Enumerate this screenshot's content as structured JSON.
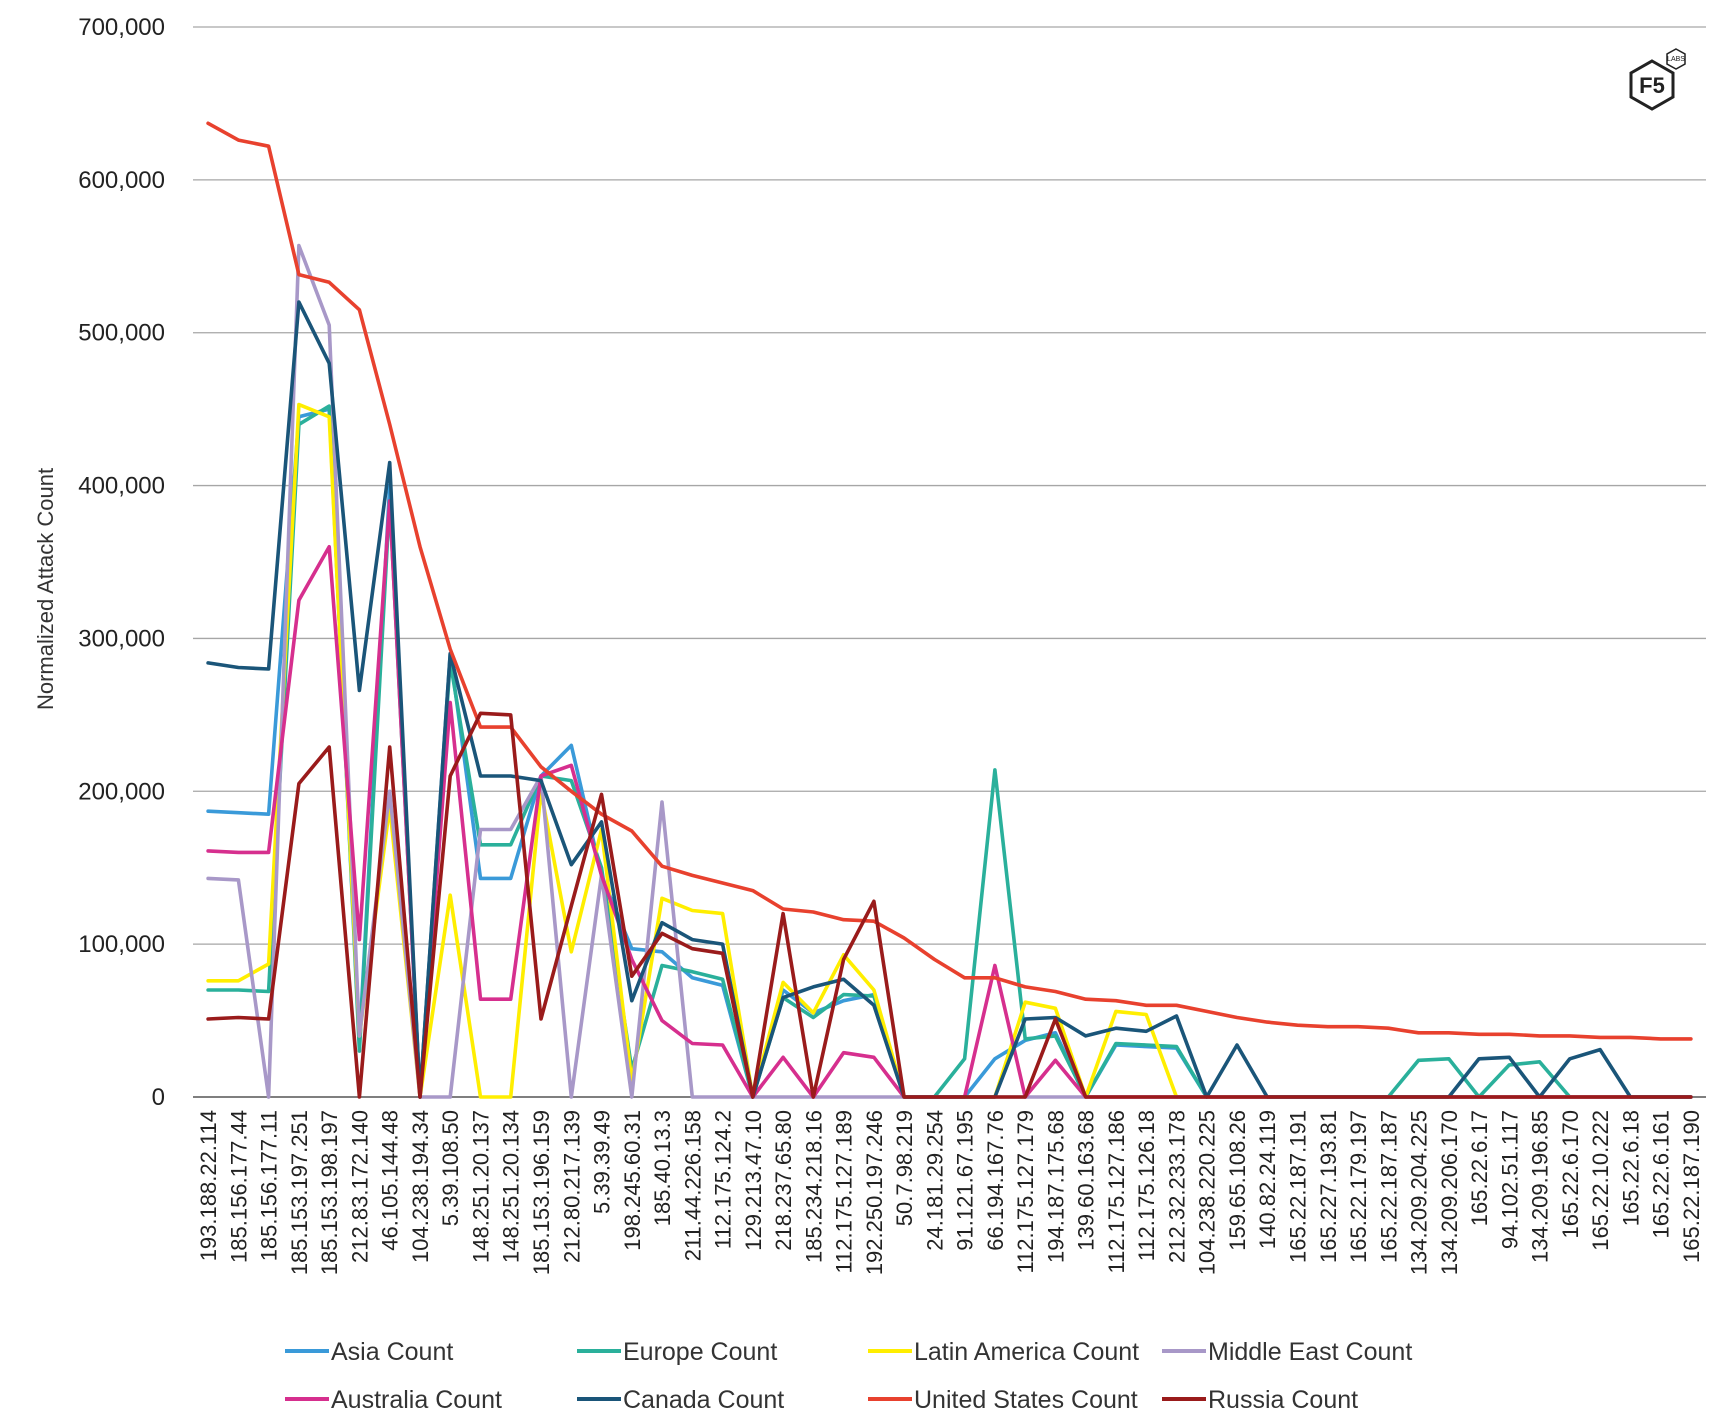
{
  "chart_data": {
    "type": "line",
    "title": "",
    "xlabel": "",
    "ylabel": "Normalized Attack Count",
    "ylim": [
      0,
      700000
    ],
    "yticks": [
      0,
      100000,
      200000,
      300000,
      400000,
      500000,
      600000,
      700000
    ],
    "ytick_labels": [
      "0",
      "100,000",
      "200,000",
      "300,000",
      "400,000",
      "500,000",
      "600,000",
      "700,000"
    ],
    "grid": true,
    "legend_position": "bottom",
    "categories": [
      "193.188.22.114",
      "185.156.177.44",
      "185.156.177.11",
      "185.153.197.251",
      "185.153.198.197",
      "212.83.172.140",
      "46.105.144.48",
      "104.238.194.34",
      "5.39.108.50",
      "148.251.20.137",
      "148.251.20.134",
      "185.153.196.159",
      "212.80.217.139",
      "5.39.39.49",
      "198.245.60.31",
      "185.40.13.3",
      "211.44.226.158",
      "112.175.124.2",
      "129.213.47.10",
      "218.237.65.80",
      "185.234.218.16",
      "112.175.127.189",
      "192.250.197.246",
      "50.7.98.219",
      "24.181.29.254",
      "91.121.67.195",
      "66.194.167.76",
      "112.175.127.179",
      "194.187.175.68",
      "139.60.163.68",
      "112.175.127.186",
      "112.175.126.18",
      "212.32.233.178",
      "104.238.220.225",
      "159.65.108.26",
      "140.82.24.119",
      "165.22.187.191",
      "165.227.193.81",
      "165.22.179.197",
      "165.22.187.187",
      "134.209.204.225",
      "134.209.206.170",
      "165.22.6.17",
      "94.102.51.117",
      "134.209.196.85",
      "165.22.6.170",
      "165.22.10.222",
      "165.22.6.18",
      "165.22.6.161",
      "165.22.187.190"
    ],
    "series": [
      {
        "name": "Asia Count",
        "color": "#3a9ad9",
        "values": [
          187000,
          186000,
          185000,
          445000,
          450000,
          35000,
          400000,
          0,
          290000,
          143000,
          143000,
          210000,
          230000,
          145000,
          97000,
          95000,
          78000,
          73000,
          0,
          70000,
          55000,
          63000,
          67000,
          0,
          0,
          0,
          25000,
          37000,
          42000,
          0,
          34000,
          33000,
          32000,
          0,
          0,
          0,
          0,
          0,
          0,
          0,
          0,
          0,
          0,
          0,
          0,
          0,
          0,
          0,
          0,
          0
        ]
      },
      {
        "name": "Europe Count",
        "color": "#2ab09b",
        "values": [
          70000,
          70000,
          69000,
          440000,
          452000,
          30000,
          390000,
          0,
          285000,
          165000,
          165000,
          210000,
          207000,
          150000,
          18000,
          86000,
          82000,
          77000,
          0,
          65000,
          52000,
          67000,
          66000,
          0,
          0,
          25000,
          214000,
          38000,
          40000,
          0,
          35000,
          34000,
          33000,
          0,
          0,
          0,
          0,
          0,
          0,
          0,
          24000,
          25000,
          0,
          21000,
          23000,
          0,
          0,
          0,
          0,
          0
        ]
      },
      {
        "name": "Latin America Count",
        "color": "#ffee00",
        "values": [
          76000,
          76000,
          87000,
          453000,
          445000,
          40000,
          190000,
          0,
          132000,
          0,
          0,
          200000,
          95000,
          175000,
          10000,
          130000,
          122000,
          120000,
          0,
          75000,
          55000,
          93000,
          70000,
          0,
          0,
          0,
          0,
          62000,
          58000,
          0,
          56000,
          54000,
          0,
          0,
          0,
          0,
          0,
          0,
          0,
          0,
          0,
          0,
          0,
          0,
          0,
          0,
          0,
          0,
          0,
          0
        ]
      },
      {
        "name": "Middle East Count",
        "color": "#a898c8",
        "values": [
          143000,
          142000,
          0,
          557000,
          505000,
          40000,
          200000,
          0,
          0,
          175000,
          175000,
          210000,
          0,
          145000,
          0,
          193000,
          0,
          0,
          0,
          0,
          0,
          0,
          0,
          0,
          0,
          0,
          0,
          0,
          0,
          0,
          0,
          0,
          0,
          0,
          0,
          0,
          0,
          0,
          0,
          0,
          0,
          0,
          0,
          0,
          0,
          0,
          0,
          0,
          0,
          0
        ]
      },
      {
        "name": "Australia Count",
        "color": "#d62f8e",
        "values": [
          161000,
          160000,
          160000,
          325000,
          360000,
          103000,
          390000,
          0,
          258000,
          64000,
          64000,
          210000,
          217000,
          145000,
          90000,
          50000,
          35000,
          34000,
          0,
          26000,
          0,
          29000,
          26000,
          0,
          0,
          0,
          86000,
          0,
          24000,
          0,
          0,
          0,
          0,
          0,
          0,
          0,
          0,
          0,
          0,
          0,
          0,
          0,
          0,
          0,
          0,
          0,
          0,
          0,
          0,
          0
        ]
      },
      {
        "name": "Canada Count",
        "color": "#1a5579",
        "values": [
          284000,
          281000,
          280000,
          520000,
          480000,
          266000,
          415000,
          0,
          290000,
          210000,
          210000,
          207000,
          152000,
          180000,
          63000,
          114000,
          103000,
          100000,
          0,
          65000,
          72000,
          77000,
          60000,
          0,
          0,
          0,
          0,
          51000,
          52000,
          40000,
          45000,
          43000,
          53000,
          0,
          34000,
          0,
          0,
          0,
          0,
          0,
          0,
          0,
          25000,
          26000,
          0,
          25000,
          31000,
          0,
          0,
          0
        ]
      },
      {
        "name": "United States Count",
        "color": "#e8412e",
        "values": [
          637000,
          626000,
          622000,
          538000,
          533000,
          515000,
          440000,
          360000,
          293000,
          242000,
          242000,
          216000,
          200000,
          185000,
          174000,
          151000,
          145000,
          140000,
          135000,
          123000,
          121000,
          116000,
          115000,
          104000,
          90000,
          78000,
          78000,
          72000,
          69000,
          64000,
          63000,
          60000,
          60000,
          56000,
          52000,
          49000,
          47000,
          46000,
          46000,
          45000,
          42000,
          42000,
          41000,
          41000,
          40000,
          40000,
          39000,
          39000,
          38000,
          38000
        ]
      },
      {
        "name": "Russia Count",
        "color": "#9a1b1b",
        "values": [
          51000,
          52000,
          51000,
          205000,
          229000,
          0,
          229000,
          0,
          210000,
          251000,
          250000,
          51000,
          125000,
          198000,
          79000,
          107000,
          97000,
          94000,
          0,
          120000,
          0,
          90000,
          128000,
          0,
          0,
          0,
          0,
          0,
          51000,
          0,
          0,
          0,
          0,
          0,
          0,
          0,
          0,
          0,
          0,
          0,
          0,
          0,
          0,
          0,
          0,
          0,
          0,
          0,
          0,
          0
        ]
      }
    ]
  },
  "logo": {
    "text": "F5",
    "sub": "LABS"
  }
}
